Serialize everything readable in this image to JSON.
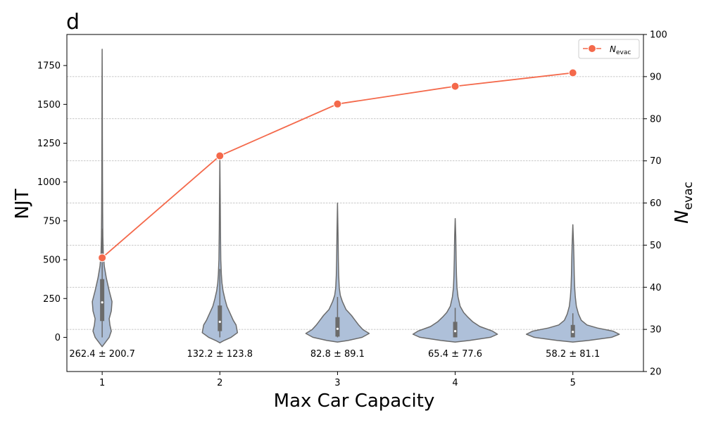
{
  "panel_label": "d",
  "chart_data": {
    "type": "violin+line",
    "xlabel": "Max Car Capacity",
    "ylabel_left": "NJT",
    "ylabel_right_main": "N",
    "ylabel_right_sub": "evac",
    "legend_main": "N",
    "legend_sub": "evac",
    "legend_position": "top-right",
    "categories": [
      "1",
      "2",
      "3",
      "4",
      "5"
    ],
    "y_left_lim": [
      -220,
      1950
    ],
    "y_left_ticks": [
      "0",
      "250",
      "500",
      "750",
      "1000",
      "1250",
      "1500",
      "1750"
    ],
    "y_right_lim": [
      20,
      100
    ],
    "y_right_ticks": [
      "20",
      "30",
      "40",
      "50",
      "60",
      "70",
      "80",
      "90",
      "100"
    ],
    "grid": "horizontal dashed (right axis)",
    "violin_color": "#aec0d9",
    "violin_edge_color": "#6b6b6b",
    "line_color": "#f4694b",
    "violins": [
      {
        "category": "1",
        "min": -60,
        "max": 1855,
        "q1": 105,
        "median": 225,
        "q3": 375,
        "whisker_low": 0,
        "whisker_high": 700,
        "stat_text": "262.4 ± 200.7",
        "profile": [
          [
            -60,
            0
          ],
          [
            -30,
            5
          ],
          [
            0,
            10
          ],
          [
            40,
            13
          ],
          [
            80,
            11
          ],
          [
            120,
            10
          ],
          [
            170,
            13
          ],
          [
            230,
            14
          ],
          [
            300,
            10
          ],
          [
            380,
            6
          ],
          [
            460,
            3
          ],
          [
            540,
            1.6
          ],
          [
            650,
            1
          ],
          [
            800,
            0.7
          ],
          [
            1000,
            0.5
          ],
          [
            1300,
            0.3
          ],
          [
            1600,
            0.2
          ],
          [
            1855,
            0
          ]
        ]
      },
      {
        "category": "2",
        "min": -35,
        "max": 1150,
        "q1": 40,
        "median": 100,
        "q3": 205,
        "whisker_low": 0,
        "whisker_high": 440,
        "stat_text": "132.2 ± 123.8",
        "profile": [
          [
            -35,
            0
          ],
          [
            -20,
            6
          ],
          [
            0,
            16
          ],
          [
            30,
            25
          ],
          [
            55,
            24
          ],
          [
            80,
            23
          ],
          [
            110,
            19
          ],
          [
            150,
            15
          ],
          [
            200,
            10
          ],
          [
            250,
            7
          ],
          [
            300,
            4.5
          ],
          [
            350,
            3
          ],
          [
            400,
            2.2
          ],
          [
            500,
            1.3
          ],
          [
            700,
            0.8
          ],
          [
            900,
            0.5
          ],
          [
            1150,
            0
          ]
        ]
      },
      {
        "category": "3",
        "min": -30,
        "max": 865,
        "q1": 5,
        "median": 55,
        "q3": 130,
        "whisker_low": 0,
        "whisker_high": 260,
        "stat_text": "82.8 ± 89.1",
        "profile": [
          [
            -30,
            0
          ],
          [
            -20,
            15
          ],
          [
            0,
            35
          ],
          [
            25,
            45
          ],
          [
            50,
            36
          ],
          [
            80,
            30
          ],
          [
            110,
            25
          ],
          [
            140,
            20
          ],
          [
            180,
            12
          ],
          [
            230,
            7
          ],
          [
            270,
            4
          ],
          [
            320,
            2.5
          ],
          [
            400,
            1.7
          ],
          [
            500,
            1.2
          ],
          [
            650,
            0.8
          ],
          [
            865,
            0
          ]
        ]
      },
      {
        "category": "4",
        "min": -30,
        "max": 765,
        "q1": 0,
        "median": 40,
        "q3": 100,
        "whisker_low": 0,
        "whisker_high": 190,
        "stat_text": "65.4 ± 77.6",
        "profile": [
          [
            -30,
            0
          ],
          [
            -20,
            20
          ],
          [
            0,
            50
          ],
          [
            20,
            60
          ],
          [
            40,
            53
          ],
          [
            70,
            35
          ],
          [
            100,
            25
          ],
          [
            130,
            18
          ],
          [
            160,
            12
          ],
          [
            200,
            7
          ],
          [
            260,
            4
          ],
          [
            320,
            2.5
          ],
          [
            400,
            1.8
          ],
          [
            500,
            1.3
          ],
          [
            650,
            0.8
          ],
          [
            765,
            0
          ]
        ]
      },
      {
        "category": "5",
        "min": -30,
        "max": 725,
        "q1": 0,
        "median": 35,
        "q3": 80,
        "whisker_low": 0,
        "whisker_high": 155,
        "stat_text": "58.2 ± 81.1",
        "profile": [
          [
            -30,
            0
          ],
          [
            -20,
            22
          ],
          [
            0,
            55
          ],
          [
            20,
            66
          ],
          [
            40,
            57
          ],
          [
            60,
            35
          ],
          [
            80,
            20
          ],
          [
            110,
            12
          ],
          [
            150,
            8
          ],
          [
            200,
            5
          ],
          [
            260,
            3.5
          ],
          [
            320,
            2.6
          ],
          [
            400,
            2
          ],
          [
            500,
            1.6
          ],
          [
            600,
            1
          ],
          [
            725,
            0
          ]
        ]
      }
    ],
    "line_series": {
      "name": "N_evac",
      "axis": "right",
      "values": [
        47,
        71.2,
        83.5,
        87.7,
        90.9
      ]
    }
  }
}
